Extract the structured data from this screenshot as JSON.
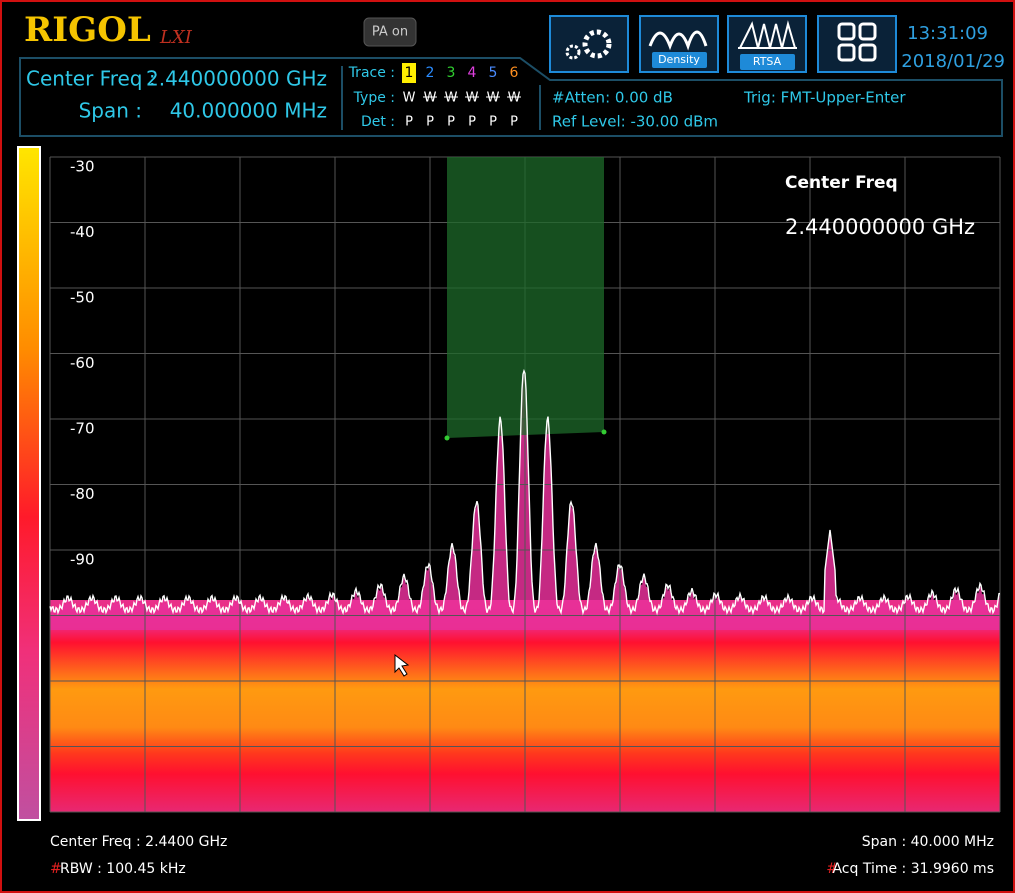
{
  "header": {
    "logo": "RIGOL",
    "lxi": "LXI",
    "pa": "PA on",
    "buttons": [
      "Density",
      "RTSA"
    ],
    "time": "13:31:09",
    "date": "2018/01/29"
  },
  "status": {
    "center_label": "Center Freq :",
    "center_value": "2.440000000 GHz",
    "span_label": "Span :",
    "span_value": "40.000000 MHz",
    "trace_label": "Trace :",
    "traces": [
      "1",
      "2",
      "3",
      "4",
      "5",
      "6"
    ],
    "type_label": "Type :",
    "types": [
      "W",
      "W",
      "W",
      "W",
      "W",
      "W"
    ],
    "det_label": "Det :",
    "dets": [
      "P",
      "P",
      "P",
      "P",
      "P",
      "P"
    ],
    "atten": "#Atten: 0.00 dB",
    "ref_level": "Ref Level: -30.00 dBm",
    "trig": "Trig: FMT-Upper-Enter"
  },
  "plot": {
    "y_labels": [
      "-30",
      "-40",
      "-50",
      "-60",
      "-70",
      "-80",
      "-90"
    ],
    "marker_title": "Center Freq",
    "marker_value": "2.440000000 GHz"
  },
  "footer": {
    "center": "Center Freq : 2.4400 GHz",
    "rbw_flag": "#",
    "rbw": "RBW : 100.45 kHz",
    "span": "Span : 40.000 MHz",
    "acq_flag": "#",
    "acq": "Acq Time : 31.9960 ms"
  }
}
